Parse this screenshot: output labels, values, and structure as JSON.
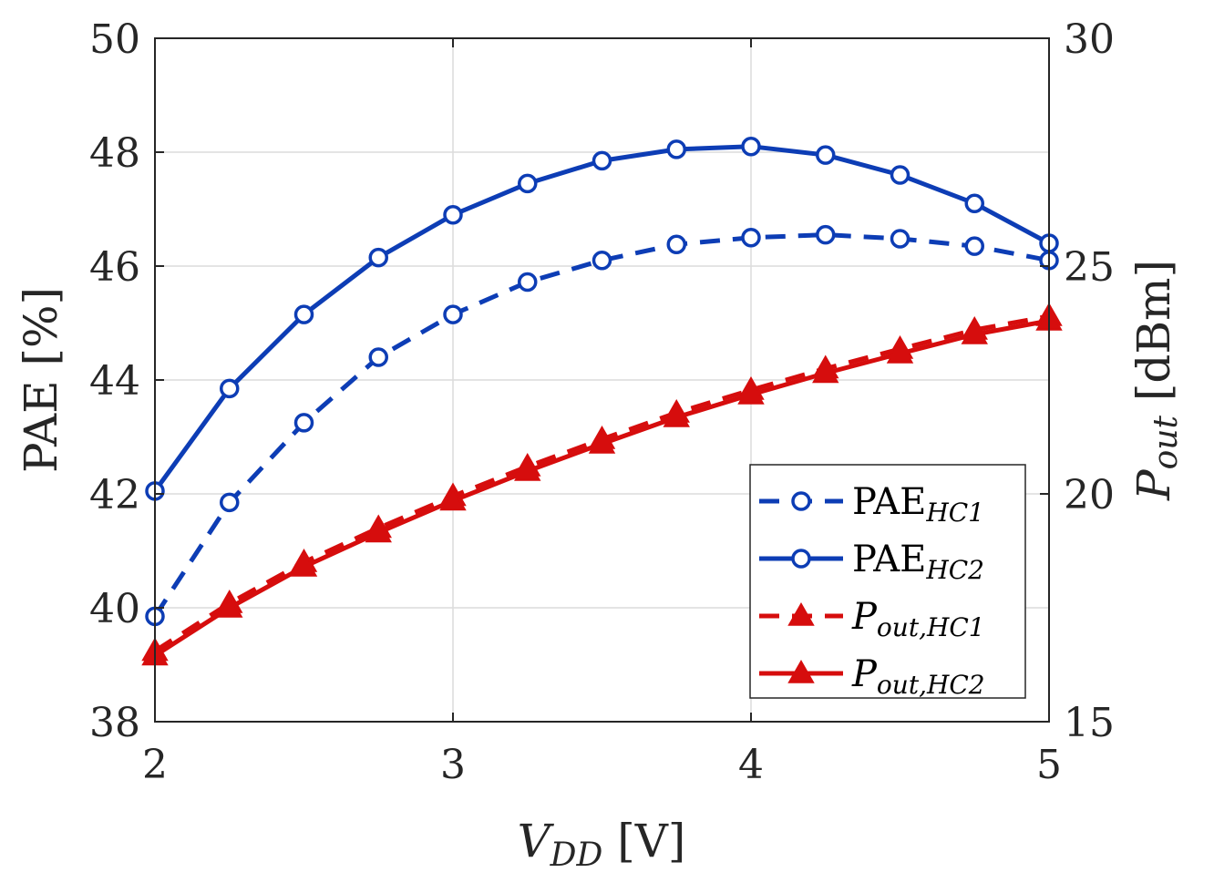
{
  "chart_data": {
    "type": "line",
    "title": "",
    "xlabel": {
      "main": "V",
      "sub": "DD",
      "unit": " [V]"
    },
    "ylabel_left": "PAE [%]",
    "ylabel_right": {
      "main": "P",
      "sub": "out",
      "unit": " [dBm]"
    },
    "xlim": [
      2,
      5
    ],
    "ylim_left": [
      38,
      50
    ],
    "ylim_right": [
      15,
      30
    ],
    "xticks": [
      "2",
      "3",
      "4",
      "5"
    ],
    "yticks_left": [
      "38",
      "40",
      "42",
      "44",
      "46",
      "48",
      "50"
    ],
    "yticks_right": [
      "15",
      "20",
      "25",
      "30"
    ],
    "grid": true,
    "legend_position": "bottom-right",
    "x": [
      2,
      2.25,
      2.5,
      2.75,
      3,
      3.25,
      3.5,
      3.75,
      4,
      4.25,
      4.5,
      4.75,
      5
    ],
    "series": [
      {
        "name": "PAE_HC1",
        "label_main": "PAE",
        "label_sub": "HC1",
        "axis": "left",
        "color": "#0d3db5",
        "line": "dashed",
        "marker": "circle",
        "values": [
          39.85,
          41.85,
          43.25,
          44.4,
          45.15,
          45.72,
          46.1,
          46.38,
          46.5,
          46.55,
          46.48,
          46.35,
          46.1
        ]
      },
      {
        "name": "PAE_HC2",
        "label_main": "PAE",
        "label_sub": "HC2",
        "axis": "left",
        "color": "#0d3db5",
        "line": "solid",
        "marker": "circle",
        "values": [
          42.05,
          43.85,
          45.15,
          46.15,
          46.9,
          47.45,
          47.85,
          48.05,
          48.1,
          47.95,
          47.6,
          47.1,
          46.4
        ]
      },
      {
        "name": "Pout_HC1",
        "label_main": "P",
        "label_sub": "out,HC1",
        "axis": "right",
        "color": "#d60d0d",
        "line": "dashed",
        "marker": "triangle",
        "values": [
          16.55,
          17.6,
          18.5,
          19.25,
          19.95,
          20.6,
          21.2,
          21.78,
          22.28,
          22.75,
          23.18,
          23.6,
          23.9
        ]
      },
      {
        "name": "Pout_HC2",
        "label_main": "P",
        "label_sub": "out,HC2",
        "axis": "right",
        "color": "#d60d0d",
        "line": "solid",
        "marker": "triangle",
        "values": [
          16.45,
          17.5,
          18.4,
          19.15,
          19.85,
          20.5,
          21.1,
          21.68,
          22.18,
          22.65,
          23.08,
          23.5,
          23.8
        ]
      }
    ]
  }
}
